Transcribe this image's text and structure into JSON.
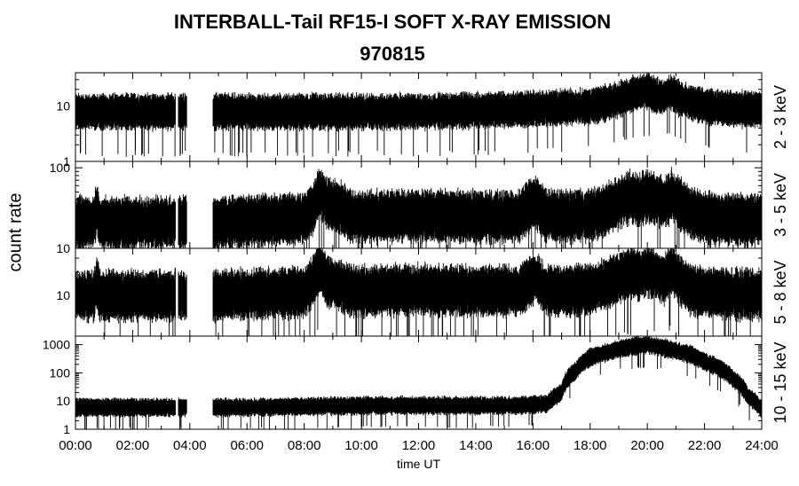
{
  "chart_data": {
    "type": "line",
    "title": "INTERBALL-Tail RF15-I SOFT X-RAY EMISSION",
    "subtitle": "970815",
    "xlabel": "time UT",
    "ylabel": "count rate",
    "x_unit": "hours",
    "xlim": [
      0,
      24
    ],
    "x_ticks": [
      "00:00",
      "02:00",
      "04:00",
      "06:00",
      "08:00",
      "10:00",
      "12:00",
      "14:00",
      "16:00",
      "18:00",
      "20:00",
      "22:00",
      "24:00"
    ],
    "data_gaps_hours": [
      [
        3.5,
        3.6
      ],
      [
        3.9,
        4.8
      ]
    ],
    "y_scale": "log",
    "grid": false,
    "panels": [
      {
        "name": "2 - 3 keV",
        "ylim": [
          1,
          40
        ],
        "y_ticks": [
          "1",
          "10"
        ],
        "x": [
          0,
          2,
          4.8,
          6,
          8,
          10,
          12,
          14,
          16,
          17,
          18,
          19,
          19.5,
          20,
          20.5,
          20.8,
          21.2,
          22,
          23,
          24
        ],
        "y": [
          8,
          8,
          8,
          8,
          8,
          8,
          8,
          8.5,
          9,
          9.5,
          10,
          13,
          17,
          19,
          14,
          18,
          13,
          10,
          9,
          9
        ]
      },
      {
        "name": "3 - 5 keV",
        "ylim": [
          10,
          120
        ],
        "y_ticks": [
          "10",
          "100"
        ],
        "x": [
          0,
          0.65,
          0.75,
          0.85,
          3,
          4.8,
          6,
          8,
          8.3,
          8.55,
          8.8,
          9.2,
          9.6,
          10,
          12,
          14,
          15.5,
          16.1,
          16.4,
          16.8,
          18,
          18.5,
          19,
          19.4,
          19.7,
          20,
          20.3,
          20.6,
          20.85,
          21.1,
          21.5,
          22,
          23,
          24
        ],
        "y": [
          21,
          21,
          32,
          21,
          21,
          21,
          22,
          24,
          30,
          52,
          36,
          33,
          26,
          25,
          26,
          25,
          25,
          38,
          27,
          25,
          26,
          30,
          37,
          44,
          40,
          46,
          41,
          36,
          47,
          37,
          28,
          24,
          23,
          23
        ]
      },
      {
        "name": "5 - 8 keV",
        "ylim": [
          3,
          40
        ],
        "y_ticks": [
          "10"
        ],
        "x": [
          0,
          0.65,
          0.75,
          0.85,
          3,
          4.8,
          6,
          8,
          8.3,
          8.55,
          8.8,
          9.2,
          9.6,
          10,
          12,
          14,
          15.5,
          16.1,
          16.4,
          16.8,
          18,
          18.5,
          19,
          19.4,
          19.7,
          20,
          20.3,
          20.6,
          20.85,
          21.1,
          21.5,
          22,
          23,
          24
        ],
        "y": [
          10,
          10,
          15,
          10,
          10,
          10,
          10.5,
          11,
          15,
          23,
          15,
          14,
          11.5,
          11.5,
          12,
          11.5,
          11.5,
          17,
          12,
          11.5,
          12,
          14,
          17,
          20,
          18,
          21,
          18.5,
          16,
          22,
          16,
          12,
          11,
          10.5,
          10.5
        ]
      },
      {
        "name": "10 - 15 keV",
        "ylim": [
          1,
          2000
        ],
        "y_ticks": [
          "1",
          "10",
          "100",
          "1000"
        ],
        "x": [
          0,
          2,
          4.8,
          6,
          8,
          10,
          12,
          14,
          15.5,
          16.5,
          17,
          17.5,
          18,
          18.5,
          19,
          19.5,
          20,
          20.5,
          21,
          21.5,
          22,
          22.5,
          23,
          23.5,
          24
        ],
        "y": [
          6,
          6,
          6,
          6,
          6.5,
          7,
          7,
          7,
          7,
          8,
          20,
          120,
          350,
          500,
          700,
          900,
          1000,
          800,
          600,
          450,
          250,
          150,
          60,
          15,
          5
        ]
      }
    ]
  }
}
